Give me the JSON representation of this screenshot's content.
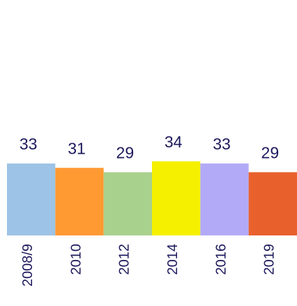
{
  "chart_data": {
    "type": "bar",
    "categories": [
      "2008/9",
      "2010",
      "2012",
      "2014",
      "2016",
      "2019"
    ],
    "values": [
      33,
      31,
      29,
      34,
      33,
      29
    ],
    "colors": [
      "#9dc3e6",
      "#ff9a33",
      "#a9d18e",
      "#f5f000",
      "#b3aaf7",
      "#e8612d"
    ],
    "ylim": [
      0,
      108
    ]
  }
}
